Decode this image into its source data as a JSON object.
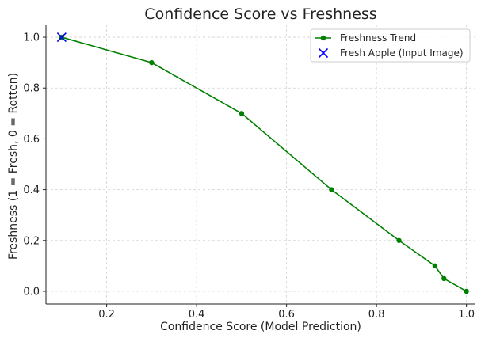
{
  "chart_data": {
    "type": "line",
    "title": "Confidence Score vs Freshness",
    "xlabel": "Confidence Score (Model Prediction)",
    "ylabel": "Freshness (1 = Fresh, 0 = Rotten)",
    "xlim": [
      0.065,
      1.02
    ],
    "ylim": [
      -0.05,
      1.05
    ],
    "xticks": [
      0.2,
      0.4,
      0.6,
      0.8,
      1.0
    ],
    "xtick_labels": [
      "0.2",
      "0.4",
      "0.6",
      "0.8",
      "1.0"
    ],
    "yticks": [
      0.0,
      0.2,
      0.4,
      0.6,
      0.8,
      1.0
    ],
    "ytick_labels": [
      "0.0",
      "0.2",
      "0.4",
      "0.6",
      "0.8",
      "1.0"
    ],
    "grid": true,
    "legend_position": "top-right",
    "series": [
      {
        "name": "Freshness Trend",
        "marker": "circle",
        "color": "#008000",
        "x": [
          0.1,
          0.3,
          0.5,
          0.7,
          0.85,
          0.93,
          0.95,
          1.0
        ],
        "y": [
          1.0,
          0.9,
          0.7,
          0.4,
          0.2,
          0.1,
          0.05,
          0.0
        ]
      },
      {
        "name": "Fresh Apple (Input Image)",
        "marker": "x",
        "color": "#0000ff",
        "x": [
          0.1
        ],
        "y": [
          1.0
        ]
      }
    ]
  }
}
